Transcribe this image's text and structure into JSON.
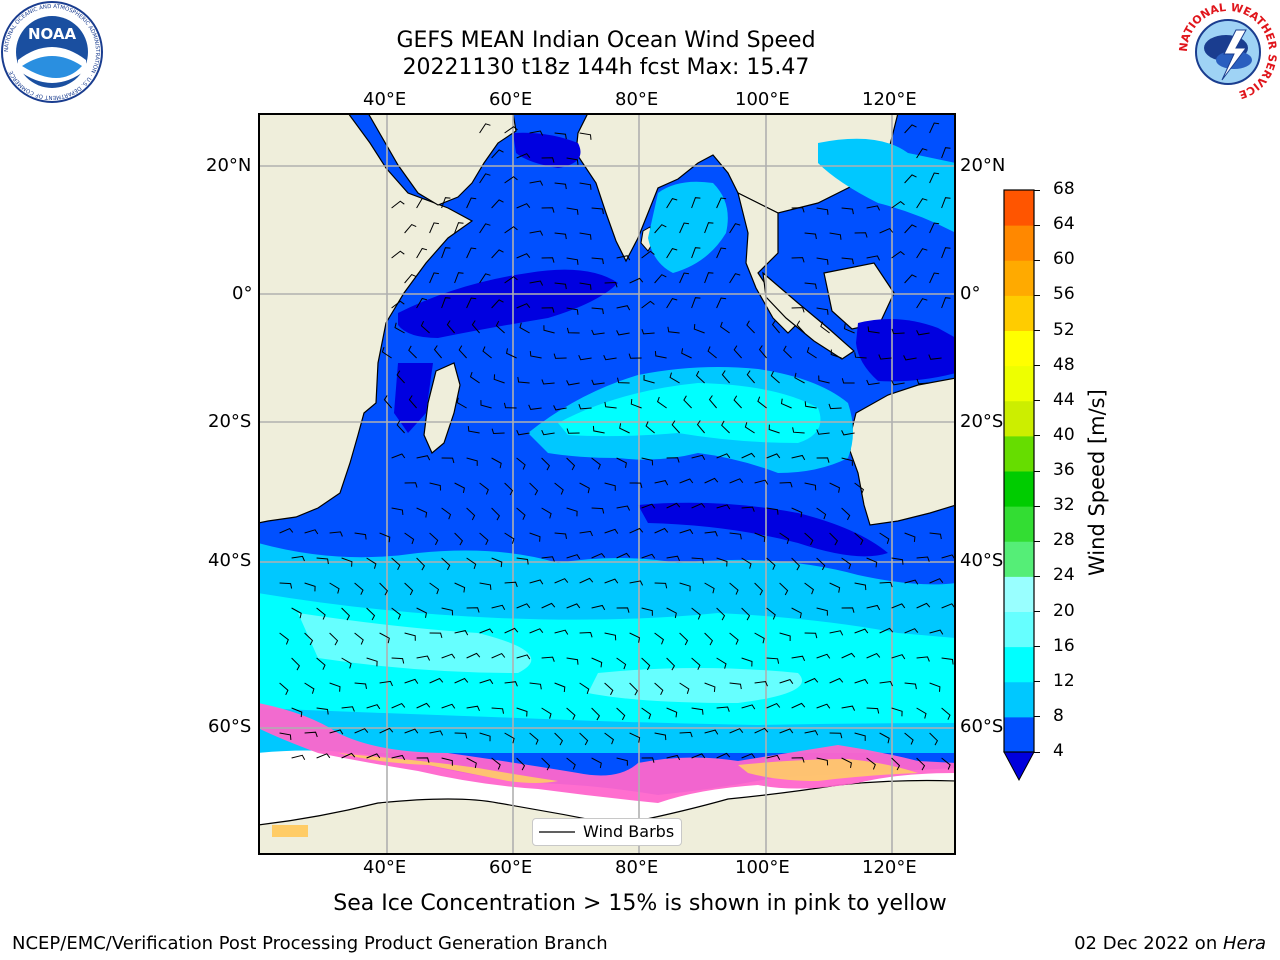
{
  "title_line1": "GEFS MEAN Indian Ocean Wind Speed",
  "title_line2": "20221130 t18z 144h fcst   Max: 15.47",
  "lon_labels": [
    "40°E",
    "60°E",
    "80°E",
    "100°E",
    "120°E"
  ],
  "lat_labels": [
    "20°N",
    "0°",
    "20°S",
    "40°S",
    "60°S"
  ],
  "colorbar": {
    "label": "Wind Speed [m/s]",
    "ticks": [
      "4",
      "8",
      "12",
      "16",
      "20",
      "24",
      "28",
      "32",
      "36",
      "40",
      "44",
      "48",
      "52",
      "56",
      "60",
      "64",
      "68"
    ],
    "colors": [
      "#0050ff",
      "#00c8ff",
      "#00ffff",
      "#66ffff",
      "#99ffff",
      "#55ee77",
      "#33dd33",
      "#00cc00",
      "#66dd00",
      "#ccee00",
      "#eeff00",
      "#ffff00",
      "#ffcc00",
      "#ffaa00",
      "#ff8800",
      "#ff5500",
      "#ff2200",
      "#ff0000"
    ],
    "extend_color": "#0000dd"
  },
  "colors": {
    "land": "#efeedb",
    "ocean_4": "#0050ff",
    "ocean_low": "#0000e0",
    "ocean_8": "#00c8ff",
    "ocean_12": "#00ffff",
    "ocean_16": "#66ffff",
    "ice": "#ff66cc",
    "ice_high": "#ffcc66",
    "antarctica": "#ffffff"
  },
  "legend": {
    "label": "Wind Barbs"
  },
  "caption": "Sea Ice Concentration > 15% is shown in pink to yellow",
  "footer_left": "NCEP/EMC/Verification Post Processing Product Generation Branch",
  "footer_right_date": "02 Dec 2022 on ",
  "footer_right_host": "Hera",
  "logos": {
    "noaa": {
      "text": "NOAA",
      "ring": "NATIONAL OCEANIC AND ATMOSPHERIC ADMINISTRATION · U.S. DEPARTMENT OF COMMERCE"
    },
    "nws": {
      "ring": "NATIONAL WEATHER SERVICE"
    }
  }
}
